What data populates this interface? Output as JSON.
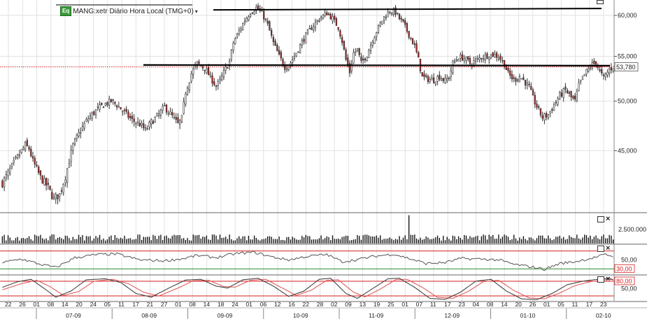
{
  "chart_title": "MANG:xetr Diário Hora Local (TMG+0)",
  "title_badge": "Eq",
  "icons": {
    "pane_maximize": "square-icon",
    "pane_close": "close-x-icon",
    "title_menu": "caret-down-icon"
  },
  "colors": {
    "up_candle": "#ffffff",
    "down_candle": "#b02424",
    "candle_outline": "#333333",
    "support_line": "#000000",
    "last_price_line": "#d62020",
    "rsi_line": "#555555",
    "stoch_k": "#333333",
    "stoch_d": "#e05050",
    "oversold_line": "#2e8b2e",
    "overbought_line": "#d62020",
    "grid": "#e2e2e2"
  },
  "chart_data": [
    {
      "type": "candlestick",
      "panel": "price",
      "ylim": [
        39500,
        62000
      ],
      "y_ticks": [
        "60,000",
        "55,000",
        "50,000",
        "45,000"
      ],
      "y_tick_values": [
        60000,
        55000,
        50000,
        45000
      ],
      "last_price_label": "53,780",
      "last_price": 53780,
      "grid": true,
      "x_day_labels": [
        "22",
        "26",
        "01",
        "08",
        "14",
        "20",
        "24",
        "05",
        "11",
        "17",
        "21",
        "27",
        "01",
        "08",
        "14",
        "18",
        "24",
        "01",
        "06",
        "12",
        "16",
        "22",
        "28",
        "02",
        "09",
        "13",
        "19",
        "25",
        "01",
        "07",
        "11",
        "17",
        "23",
        "04",
        "08",
        "14",
        "20",
        "26",
        "01",
        "05",
        "11",
        "17",
        "23"
      ],
      "x_month_labels": [
        "07-09",
        "08-09",
        "09-09",
        "10-09",
        "11-09",
        "12-09",
        "01-10",
        "02-10"
      ],
      "horizontal_lines": [
        {
          "name": "resistance",
          "value": 60800
        },
        {
          "name": "support",
          "value": 54000
        }
      ],
      "close_path": [
        [
          0,
          42000
        ],
        [
          4,
          43200
        ],
        [
          8,
          44400
        ],
        [
          12,
          45500
        ],
        [
          14,
          45200
        ],
        [
          16,
          44000
        ],
        [
          20,
          42500
        ],
        [
          24,
          41600
        ],
        [
          27,
          40600
        ],
        [
          30,
          41000
        ],
        [
          33,
          42600
        ],
        [
          37,
          45500
        ],
        [
          41,
          47000
        ],
        [
          45,
          48200
        ],
        [
          49,
          49000
        ],
        [
          53,
          49600
        ],
        [
          57,
          50000
        ],
        [
          60,
          49600
        ],
        [
          64,
          48800
        ],
        [
          68,
          48000
        ],
        [
          72,
          47600
        ],
        [
          75,
          47000
        ],
        [
          78,
          47800
        ],
        [
          82,
          48600
        ],
        [
          85,
          49400
        ],
        [
          89,
          48400
        ],
        [
          92,
          47600
        ],
        [
          94,
          48200
        ],
        [
          96,
          51000
        ],
        [
          99,
          53000
        ],
        [
          102,
          54200
        ],
        [
          106,
          53600
        ],
        [
          109,
          52600
        ],
        [
          112,
          51600
        ],
        [
          114,
          52200
        ],
        [
          117,
          53600
        ],
        [
          119,
          54400
        ],
        [
          121,
          56600
        ],
        [
          124,
          58000
        ],
        [
          127,
          59400
        ],
        [
          130,
          60400
        ],
        [
          133,
          61000
        ],
        [
          136,
          60300
        ],
        [
          139,
          58800
        ],
        [
          142,
          56600
        ],
        [
          145,
          55000
        ],
        [
          148,
          53800
        ],
        [
          150,
          53900
        ],
        [
          153,
          55000
        ],
        [
          156,
          56300
        ],
        [
          159,
          57500
        ],
        [
          163,
          58800
        ],
        [
          167,
          59800
        ],
        [
          170,
          60300
        ],
        [
          173,
          59600
        ],
        [
          176,
          58500
        ],
        [
          178,
          56800
        ],
        [
          180,
          54600
        ],
        [
          182,
          53200
        ],
        [
          184,
          55400
        ],
        [
          186,
          55800
        ],
        [
          188,
          54200
        ],
        [
          191,
          55200
        ],
        [
          194,
          57000
        ],
        [
          197,
          58500
        ],
        [
          200,
          59800
        ],
        [
          203,
          60600
        ],
        [
          206,
          60400
        ],
        [
          208,
          59600
        ],
        [
          210,
          59000
        ],
        [
          213,
          57600
        ],
        [
          216,
          56200
        ],
        [
          218,
          54600
        ],
        [
          220,
          52600
        ],
        [
          223,
          52400
        ],
        [
          226,
          52300
        ],
        [
          229,
          52700
        ],
        [
          232,
          52200
        ],
        [
          234,
          52600
        ],
        [
          236,
          54200
        ],
        [
          239,
          54900
        ],
        [
          242,
          54800
        ],
        [
          245,
          54200
        ],
        [
          248,
          54500
        ],
        [
          251,
          54900
        ],
        [
          254,
          55100
        ],
        [
          257,
          55200
        ],
        [
          260,
          55000
        ],
        [
          263,
          54100
        ],
        [
          265,
          53000
        ],
        [
          268,
          52300
        ],
        [
          271,
          52700
        ],
        [
          273,
          52300
        ],
        [
          276,
          51500
        ],
        [
          278,
          50300
        ],
        [
          281,
          49000
        ],
        [
          283,
          48300
        ],
        [
          286,
          48600
        ],
        [
          289,
          49600
        ],
        [
          292,
          50600
        ],
        [
          295,
          51200
        ],
        [
          298,
          50400
        ],
        [
          300,
          50000
        ],
        [
          302,
          51700
        ],
        [
          305,
          52900
        ],
        [
          308,
          53900
        ],
        [
          311,
          54300
        ],
        [
          313,
          53200
        ],
        [
          315,
          52500
        ],
        [
          318,
          53500
        ],
        [
          320,
          53780
        ]
      ]
    },
    {
      "type": "bar",
      "panel": "volume",
      "ylim": [
        0,
        5200000
      ],
      "y_ticks": [
        "2.500.000"
      ],
      "y_tick_values": [
        2500000
      ],
      "base_volume_range": [
        500000,
        1600000
      ],
      "spikes": [
        {
          "bar_index": 213,
          "value": 5000000
        }
      ]
    },
    {
      "type": "line",
      "panel": "rsi",
      "ylim": [
        18,
        82
      ],
      "y_ticks": [
        "50,00",
        "30,00"
      ],
      "y_tick_values": [
        50,
        30
      ],
      "reference_lines": [
        70,
        30
      ],
      "curve_path": [
        [
          0,
          44
        ],
        [
          10,
          52
        ],
        [
          20,
          40
        ],
        [
          28,
          33
        ],
        [
          38,
          55
        ],
        [
          50,
          62
        ],
        [
          60,
          63
        ],
        [
          72,
          50
        ],
        [
          85,
          48
        ],
        [
          95,
          53
        ],
        [
          102,
          60
        ],
        [
          112,
          55
        ],
        [
          122,
          64
        ],
        [
          132,
          67
        ],
        [
          142,
          56
        ],
        [
          150,
          50
        ],
        [
          160,
          58
        ],
        [
          170,
          62
        ],
        [
          178,
          46
        ],
        [
          185,
          50
        ],
        [
          195,
          58
        ],
        [
          205,
          63
        ],
        [
          214,
          52
        ],
        [
          222,
          42
        ],
        [
          232,
          44
        ],
        [
          240,
          53
        ],
        [
          250,
          52
        ],
        [
          260,
          50
        ],
        [
          268,
          40
        ],
        [
          278,
          34
        ],
        [
          284,
          29
        ],
        [
          292,
          42
        ],
        [
          300,
          46
        ],
        [
          310,
          55
        ],
        [
          316,
          62
        ],
        [
          320,
          58
        ]
      ]
    },
    {
      "type": "line",
      "panel": "stochastic",
      "ylim": [
        0,
        100
      ],
      "y_ticks": [
        "80,00",
        "50,00"
      ],
      "y_tick_values": [
        80,
        50
      ],
      "reference_lines": [
        80,
        20
      ],
      "k_path": [
        [
          0,
          55
        ],
        [
          8,
          78
        ],
        [
          15,
          88
        ],
        [
          22,
          50
        ],
        [
          28,
          15
        ],
        [
          36,
          40
        ],
        [
          44,
          86
        ],
        [
          54,
          90
        ],
        [
          62,
          75
        ],
        [
          70,
          30
        ],
        [
          78,
          15
        ],
        [
          88,
          55
        ],
        [
          96,
          85
        ],
        [
          104,
          88
        ],
        [
          112,
          60
        ],
        [
          118,
          52
        ],
        [
          126,
          86
        ],
        [
          134,
          92
        ],
        [
          142,
          60
        ],
        [
          150,
          18
        ],
        [
          158,
          40
        ],
        [
          166,
          88
        ],
        [
          172,
          92
        ],
        [
          180,
          30
        ],
        [
          186,
          10
        ],
        [
          194,
          50
        ],
        [
          202,
          90
        ],
        [
          208,
          92
        ],
        [
          216,
          55
        ],
        [
          224,
          10
        ],
        [
          232,
          6
        ],
        [
          240,
          35
        ],
        [
          248,
          80
        ],
        [
          256,
          88
        ],
        [
          264,
          40
        ],
        [
          272,
          8
        ],
        [
          280,
          5
        ],
        [
          288,
          30
        ],
        [
          296,
          66
        ],
        [
          304,
          80
        ],
        [
          312,
          88
        ],
        [
          318,
          92
        ],
        [
          320,
          85
        ]
      ],
      "d_path": [
        [
          0,
          45
        ],
        [
          10,
          70
        ],
        [
          18,
          84
        ],
        [
          25,
          58
        ],
        [
          32,
          22
        ],
        [
          40,
          38
        ],
        [
          48,
          80
        ],
        [
          58,
          88
        ],
        [
          66,
          70
        ],
        [
          74,
          35
        ],
        [
          82,
          20
        ],
        [
          92,
          52
        ],
        [
          100,
          82
        ],
        [
          108,
          84
        ],
        [
          116,
          58
        ],
        [
          122,
          56
        ],
        [
          130,
          84
        ],
        [
          138,
          88
        ],
        [
          146,
          55
        ],
        [
          154,
          22
        ],
        [
          162,
          44
        ],
        [
          170,
          84
        ],
        [
          176,
          86
        ],
        [
          184,
          35
        ],
        [
          190,
          16
        ],
        [
          198,
          48
        ],
        [
          206,
          86
        ],
        [
          212,
          88
        ],
        [
          220,
          55
        ],
        [
          228,
          14
        ],
        [
          236,
          10
        ],
        [
          244,
          38
        ],
        [
          252,
          78
        ],
        [
          260,
          84
        ],
        [
          268,
          42
        ],
        [
          276,
          12
        ],
        [
          284,
          8
        ],
        [
          292,
          32
        ],
        [
          300,
          62
        ],
        [
          308,
          78
        ],
        [
          316,
          86
        ],
        [
          320,
          88
        ]
      ]
    }
  ]
}
